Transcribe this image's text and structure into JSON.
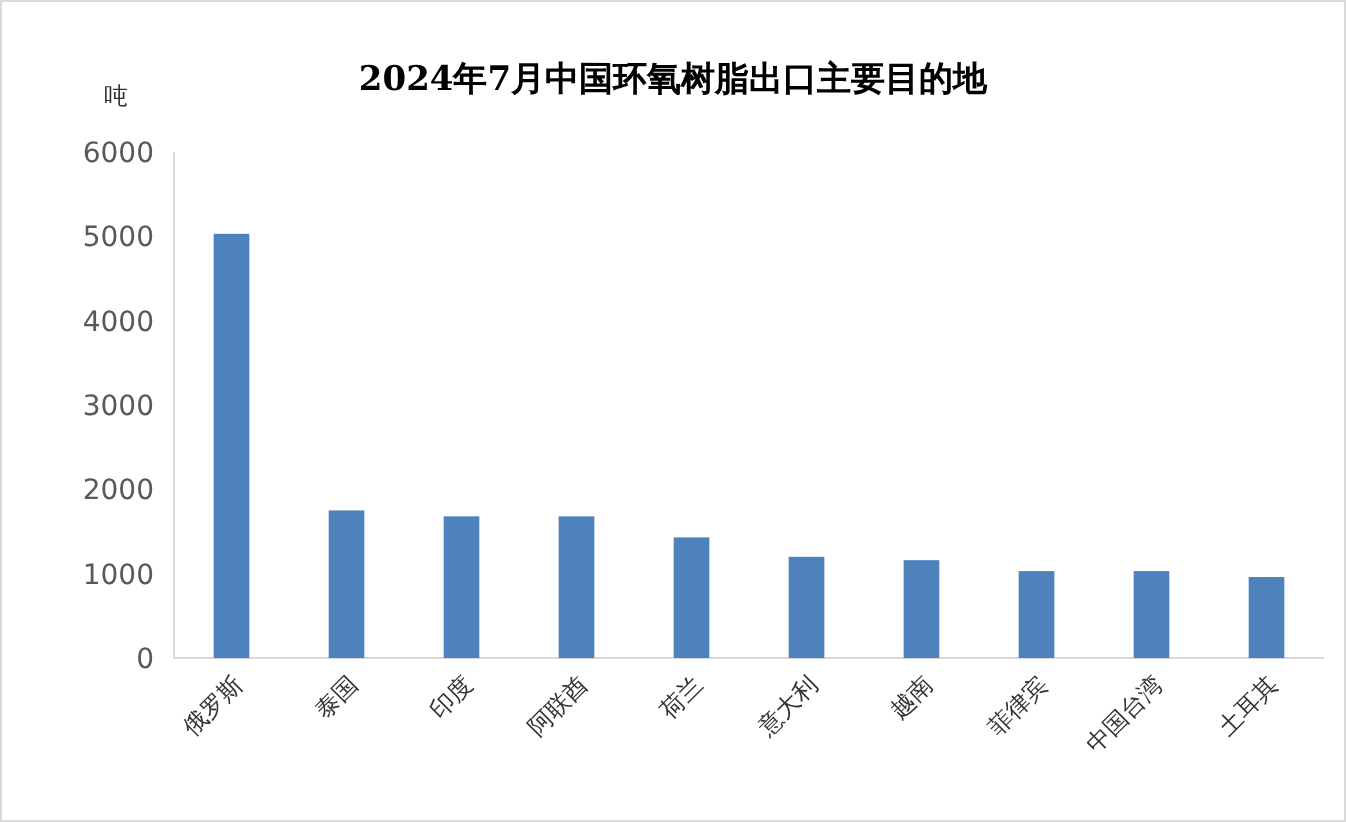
{
  "chart_data": {
    "type": "bar",
    "title": "2024年7月中国环氧树脂出口主要目的地",
    "ylabel": "吨",
    "categories": [
      "俄罗斯",
      "泰国",
      "印度",
      "阿联酋",
      "荷兰",
      "意大利",
      "越南",
      "菲律宾",
      "中国台湾",
      "土耳其"
    ],
    "values": [
      5030,
      1750,
      1680,
      1680,
      1430,
      1200,
      1160,
      1030,
      1030,
      960
    ],
    "color": "#4f81bd",
    "ylim": [
      0,
      6000
    ],
    "yticks": [
      0,
      1000,
      2000,
      3000,
      4000,
      5000,
      6000
    ],
    "grid": false
  }
}
